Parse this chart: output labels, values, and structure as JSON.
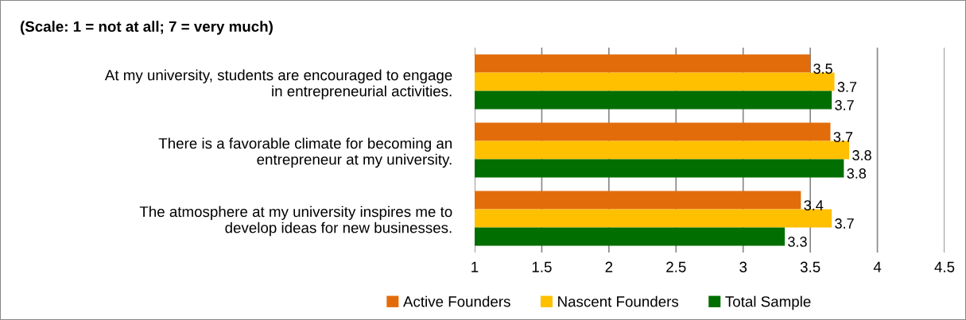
{
  "chart_data": {
    "type": "bar",
    "orientation": "horizontal",
    "title": "(Scale: 1 = not at all; 7 = very much)",
    "categories": [
      "At my university, students are encouraged to engage\nin entrepreneurial activities.",
      "There is a favorable climate for becoming an\nentrepreneur at my university.",
      "The atmosphere at my university inspires me to\ndevelop ideas for new businesses."
    ],
    "series": [
      {
        "name": "Active Founders",
        "color": "#e36c0a",
        "values": [
          3.5,
          3.65,
          3.43
        ],
        "value_labels": [
          "3.5",
          "3.7",
          "3.4"
        ]
      },
      {
        "name": "Nascent Founders",
        "color": "#ffc000",
        "values": [
          3.68,
          3.79,
          3.66
        ],
        "value_labels": [
          "3.7",
          "3.8",
          "3.7"
        ]
      },
      {
        "name": "Total Sample",
        "color": "#006e00",
        "values": [
          3.66,
          3.75,
          3.31
        ],
        "value_labels": [
          "3.7",
          "3.8",
          "3.3"
        ]
      }
    ],
    "xlim": [
      1,
      4.5
    ],
    "xticks": [
      1,
      1.5,
      2,
      2.5,
      3,
      3.5,
      4,
      4.5
    ],
    "grid": "x",
    "legend": "bottom"
  }
}
